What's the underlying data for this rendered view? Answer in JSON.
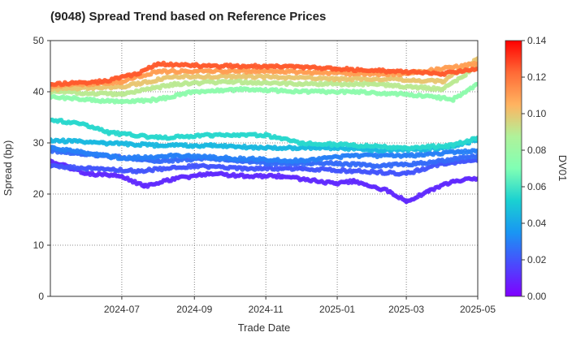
{
  "chart_data": {
    "type": "scatter",
    "title": "(9048)   Spread Trend based on Reference Prices",
    "xlabel": "Trade Date",
    "ylabel": "Spread (bp)",
    "xlim": [
      "2024-05-01",
      "2025-05-01"
    ],
    "ylim": [
      0,
      50
    ],
    "x_ticks": [
      "2024-07",
      "2024-09",
      "2024-11",
      "2025-01",
      "2025-03",
      "2025-05"
    ],
    "y_ticks": [
      0,
      10,
      20,
      30,
      40,
      50
    ],
    "grid": true,
    "colorbar": {
      "label": "DV01",
      "min": 0.0,
      "max": 0.14,
      "ticks": [
        "0.00",
        "0.02",
        "0.04",
        "0.06",
        "0.08",
        "0.10",
        "0.12",
        "0.14"
      ],
      "colormap": "rainbow"
    },
    "series": [
      {
        "dv01": 0.01,
        "values": [
          {
            "x": "2024-05-01",
            "y": 26.5
          },
          {
            "x": "2024-06-01",
            "y": 24.0
          },
          {
            "x": "2024-07-01",
            "y": 23.5
          },
          {
            "x": "2024-07-20",
            "y": 21.5
          },
          {
            "x": "2024-08-15",
            "y": 23.0
          },
          {
            "x": "2024-09-15",
            "y": 24.0
          },
          {
            "x": "2024-10-15",
            "y": 23.5
          },
          {
            "x": "2024-11-15",
            "y": 23.5
          },
          {
            "x": "2024-12-31",
            "y": 22.0
          },
          {
            "x": "2025-01-15",
            "y": 22.5
          },
          {
            "x": "2025-02-15",
            "y": 20.5
          },
          {
            "x": "2025-03-01",
            "y": 18.5
          },
          {
            "x": "2025-03-20",
            "y": 20.5
          },
          {
            "x": "2025-04-10",
            "y": 22.5
          },
          {
            "x": "2025-05-01",
            "y": 23.0
          }
        ]
      },
      {
        "dv01": 0.02,
        "values": [
          {
            "x": "2024-05-01",
            "y": 25.5
          },
          {
            "x": "2024-06-01",
            "y": 25.0
          },
          {
            "x": "2024-07-15",
            "y": 24.5
          },
          {
            "x": "2024-09-01",
            "y": 25.5
          },
          {
            "x": "2024-10-15",
            "y": 25.0
          },
          {
            "x": "2024-12-01",
            "y": 25.0
          },
          {
            "x": "2025-01-15",
            "y": 24.5
          },
          {
            "x": "2025-03-01",
            "y": 24.0
          },
          {
            "x": "2025-04-01",
            "y": 26.0
          },
          {
            "x": "2025-05-01",
            "y": 26.5
          }
        ]
      },
      {
        "dv01": 0.025,
        "values": [
          {
            "x": "2024-05-01",
            "y": 28.5
          },
          {
            "x": "2024-06-15",
            "y": 27.5
          },
          {
            "x": "2024-08-01",
            "y": 26.5
          },
          {
            "x": "2024-09-15",
            "y": 27.0
          },
          {
            "x": "2024-11-01",
            "y": 26.0
          },
          {
            "x": "2024-12-31",
            "y": 26.0
          },
          {
            "x": "2025-02-01",
            "y": 25.5
          },
          {
            "x": "2025-03-15",
            "y": 26.0
          },
          {
            "x": "2025-05-01",
            "y": 27.5
          }
        ]
      },
      {
        "dv01": 0.03,
        "values": [
          {
            "x": "2024-05-01",
            "y": 29.0
          },
          {
            "x": "2024-07-01",
            "y": 27.0
          },
          {
            "x": "2024-08-15",
            "y": 27.5
          },
          {
            "x": "2024-10-01",
            "y": 27.0
          },
          {
            "x": "2024-12-01",
            "y": 26.5
          },
          {
            "x": "2025-01-15",
            "y": 27.5
          },
          {
            "x": "2025-03-01",
            "y": 27.5
          },
          {
            "x": "2025-05-01",
            "y": 28.5
          }
        ]
      },
      {
        "dv01": 0.045,
        "values": [
          {
            "x": "2024-05-01",
            "y": 30.5
          },
          {
            "x": "2024-06-15",
            "y": 30.0
          },
          {
            "x": "2024-08-01",
            "y": 29.5
          },
          {
            "x": "2024-09-15",
            "y": 29.5
          },
          {
            "x": "2024-11-01",
            "y": 29.0
          },
          {
            "x": "2024-12-31",
            "y": 29.0
          },
          {
            "x": "2025-02-15",
            "y": 28.5
          },
          {
            "x": "2025-04-01",
            "y": 29.0
          },
          {
            "x": "2025-05-01",
            "y": 30.5
          }
        ]
      },
      {
        "dv01": 0.055,
        "values": [
          {
            "x": "2024-05-01",
            "y": 34.5
          },
          {
            "x": "2024-06-01",
            "y": 33.5
          },
          {
            "x": "2024-06-20",
            "y": 32.0
          },
          {
            "x": "2024-08-01",
            "y": 31.0
          },
          {
            "x": "2024-09-15",
            "y": 31.5
          },
          {
            "x": "2024-11-01",
            "y": 31.5
          },
          {
            "x": "2024-12-01",
            "y": 30.0
          },
          {
            "x": "2025-01-15",
            "y": 29.5
          },
          {
            "x": "2025-03-01",
            "y": 29.0
          },
          {
            "x": "2025-04-10",
            "y": 29.5
          },
          {
            "x": "2025-05-01",
            "y": 31.0
          }
        ]
      },
      {
        "dv01": 0.075,
        "values": [
          {
            "x": "2024-05-01",
            "y": 39.0
          },
          {
            "x": "2024-06-01",
            "y": 38.5
          },
          {
            "x": "2024-07-01",
            "y": 38.0
          },
          {
            "x": "2024-08-01",
            "y": 38.5
          },
          {
            "x": "2024-09-01",
            "y": 40.0
          },
          {
            "x": "2024-10-15",
            "y": 40.5
          },
          {
            "x": "2024-12-01",
            "y": 40.0
          },
          {
            "x": "2025-01-15",
            "y": 40.0
          },
          {
            "x": "2025-03-01",
            "y": 39.5
          },
          {
            "x": "2025-04-10",
            "y": 38.5
          },
          {
            "x": "2025-05-01",
            "y": 41.5
          }
        ]
      },
      {
        "dv01": 0.09,
        "values": [
          {
            "x": "2024-05-01",
            "y": 40.0
          },
          {
            "x": "2024-07-01",
            "y": 39.5
          },
          {
            "x": "2024-08-15",
            "y": 41.5
          },
          {
            "x": "2024-10-01",
            "y": 42.0
          },
          {
            "x": "2024-12-01",
            "y": 41.5
          },
          {
            "x": "2025-02-01",
            "y": 41.5
          },
          {
            "x": "2025-04-01",
            "y": 40.5
          },
          {
            "x": "2025-05-01",
            "y": 45.0
          }
        ]
      },
      {
        "dv01": 0.1,
        "values": [
          {
            "x": "2024-05-01",
            "y": 40.5
          },
          {
            "x": "2024-07-01",
            "y": 41.0
          },
          {
            "x": "2024-08-15",
            "y": 43.0
          },
          {
            "x": "2024-10-15",
            "y": 43.0
          },
          {
            "x": "2024-12-31",
            "y": 42.5
          },
          {
            "x": "2025-02-15",
            "y": 42.5
          },
          {
            "x": "2025-04-01",
            "y": 42.0
          },
          {
            "x": "2025-05-01",
            "y": 46.5
          }
        ]
      },
      {
        "dv01": 0.11,
        "values": [
          {
            "x": "2024-05-01",
            "y": 41.0
          },
          {
            "x": "2024-07-01",
            "y": 42.0
          },
          {
            "x": "2024-08-01",
            "y": 44.0
          },
          {
            "x": "2024-09-15",
            "y": 44.0
          },
          {
            "x": "2024-11-15",
            "y": 44.0
          },
          {
            "x": "2025-01-15",
            "y": 43.5
          },
          {
            "x": "2025-03-01",
            "y": 43.5
          },
          {
            "x": "2025-05-01",
            "y": 45.5
          }
        ]
      },
      {
        "dv01": 0.125,
        "values": [
          {
            "x": "2024-05-01",
            "y": 41.5
          },
          {
            "x": "2024-06-15",
            "y": 42.0
          },
          {
            "x": "2024-07-15",
            "y": 43.5
          },
          {
            "x": "2024-08-01",
            "y": 45.5
          },
          {
            "x": "2024-09-15",
            "y": 45.0
          },
          {
            "x": "2024-11-01",
            "y": 45.0
          },
          {
            "x": "2024-12-31",
            "y": 44.5
          },
          {
            "x": "2025-02-15",
            "y": 44.0
          },
          {
            "x": "2025-04-01",
            "y": 43.5
          },
          {
            "x": "2025-05-01",
            "y": 44.5
          }
        ]
      }
    ]
  }
}
